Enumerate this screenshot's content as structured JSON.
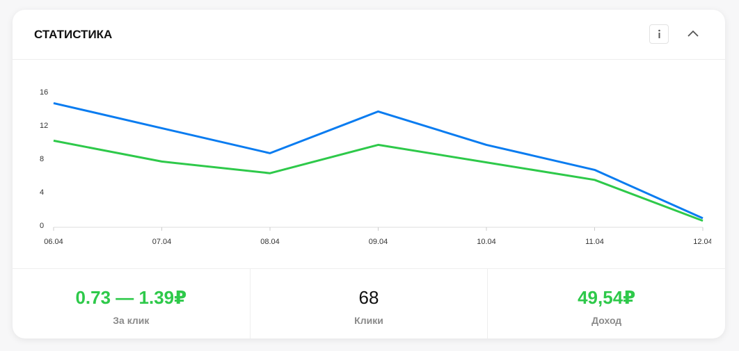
{
  "header": {
    "title": "СТАТИСТИКА"
  },
  "chart_data": {
    "type": "line",
    "categories": [
      "06.04",
      "07.04",
      "08.04",
      "09.04",
      "10.04",
      "11.04",
      "12.04"
    ],
    "series": [
      {
        "color": "#0a7cf0",
        "values": [
          14.8,
          11.8,
          8.8,
          13.8,
          9.8,
          6.8,
          1.0
        ]
      },
      {
        "color": "#2ec94a",
        "values": [
          10.3,
          7.8,
          6.4,
          9.8,
          7.7,
          5.6,
          0.7
        ]
      }
    ],
    "ylim": [
      0,
      16
    ],
    "yticks": [
      0,
      4,
      8,
      12,
      16
    ],
    "grid": false
  },
  "stats": [
    {
      "value": "0.73 — 1.39₽",
      "label": "За клик",
      "color": "#2ec94a"
    },
    {
      "value": "68",
      "label": "Клики",
      "color": "#111111"
    },
    {
      "value": "49,54₽",
      "label": "Доход",
      "color": "#2ec94a"
    }
  ]
}
